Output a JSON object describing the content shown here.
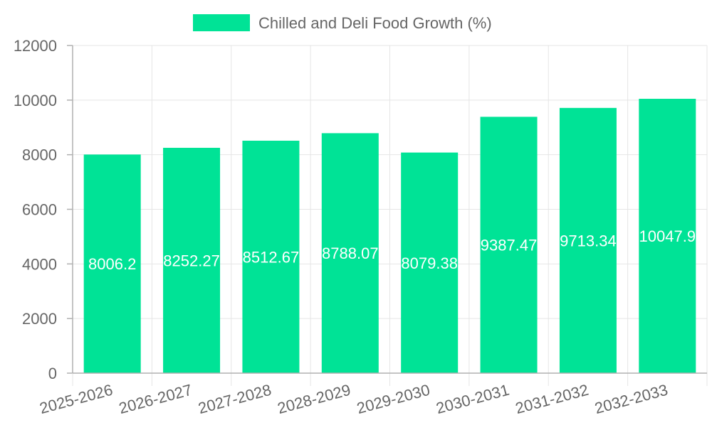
{
  "chart_data": {
    "type": "bar",
    "title": "",
    "xlabel": "",
    "ylabel": "",
    "categories": [
      "2025-2026",
      "2026-2027",
      "2027-2028",
      "2028-2029",
      "2029-2030",
      "2030-2031",
      "2031-2032",
      "2032-2033"
    ],
    "series": [
      {
        "name": "Chilled and Deli Food Growth (%)",
        "values": [
          8006.2,
          8252.27,
          8512.67,
          8788.07,
          8079.38,
          9387.47,
          9713.34,
          10047.9
        ],
        "labels": [
          "8006.2",
          "8252.27",
          "8512.67",
          "8788.07",
          "8079.38",
          "9387.47",
          "9713.34",
          "10047.9"
        ],
        "color": "#00e396"
      }
    ],
    "ylim": [
      0,
      12000
    ],
    "yticks": [
      0,
      2000,
      4000,
      6000,
      8000,
      10000,
      12000
    ],
    "ytick_labels": [
      "0",
      "2000",
      "4000",
      "6000",
      "8000",
      "10000",
      "12000"
    ],
    "grid": true,
    "legend_position": "top-center"
  }
}
